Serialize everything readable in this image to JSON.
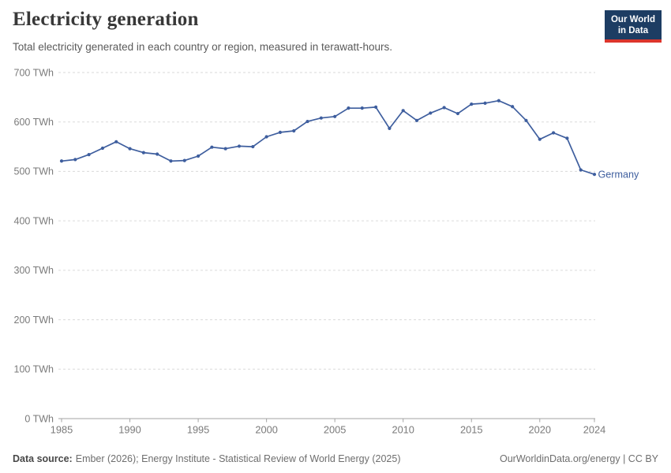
{
  "header": {
    "title": "Electricity generation",
    "subtitle": "Total electricity generated in each country or region, measured in terawatt-hours."
  },
  "logo": {
    "line1": "Our World",
    "line2": "in Data",
    "bg_color": "#1d3d63",
    "accent_color": "#dc352c"
  },
  "footer": {
    "source_label": "Data source:",
    "source_text": "Ember (2026); Energy Institute - Statistical Review of World Energy (2025)",
    "right_text": "OurWorldinData.org/energy | CC BY"
  },
  "chart_data": {
    "type": "line",
    "title": "Electricity generation",
    "unit": "TWh",
    "grid": "horizontal-dashed",
    "legend_position": "end-of-line",
    "ylim": [
      0,
      700
    ],
    "yticks": [
      0,
      100,
      200,
      300,
      400,
      500,
      600,
      700
    ],
    "ytick_labels": [
      "0 TWh",
      "100 TWh",
      "200 TWh",
      "300 TWh",
      "400 TWh",
      "500 TWh",
      "600 TWh",
      "700 TWh"
    ],
    "xticks": [
      1985,
      1990,
      1995,
      2000,
      2005,
      2010,
      2015,
      2020,
      2024
    ],
    "xtick_labels": [
      "1985",
      "1990",
      "1995",
      "2000",
      "2005",
      "2010",
      "2015",
      "2020",
      "2024"
    ],
    "x": [
      1985,
      1986,
      1987,
      1988,
      1989,
      1990,
      1991,
      1992,
      1993,
      1994,
      1995,
      1996,
      1997,
      1998,
      1999,
      2000,
      2001,
      2002,
      2003,
      2004,
      2005,
      2006,
      2007,
      2008,
      2009,
      2010,
      2011,
      2012,
      2013,
      2014,
      2015,
      2016,
      2017,
      2018,
      2019,
      2020,
      2021,
      2022,
      2023,
      2024
    ],
    "series": [
      {
        "name": "Germany",
        "color": "#3e5e9e",
        "values": [
          521,
          524,
          534,
          547,
          560,
          546,
          538,
          535,
          521,
          522,
          531,
          549,
          546,
          551,
          550,
          570,
          579,
          582,
          601,
          608,
          611,
          628,
          628,
          630,
          587,
          623,
          603,
          618,
          629,
          617,
          636,
          638,
          643,
          631,
          603,
          565,
          578,
          567,
          503,
          494
        ]
      }
    ],
    "colors": {
      "gridline": "#dadada",
      "axis_line": "#a3a3a3",
      "tick_label": "#7a7a7a"
    }
  }
}
